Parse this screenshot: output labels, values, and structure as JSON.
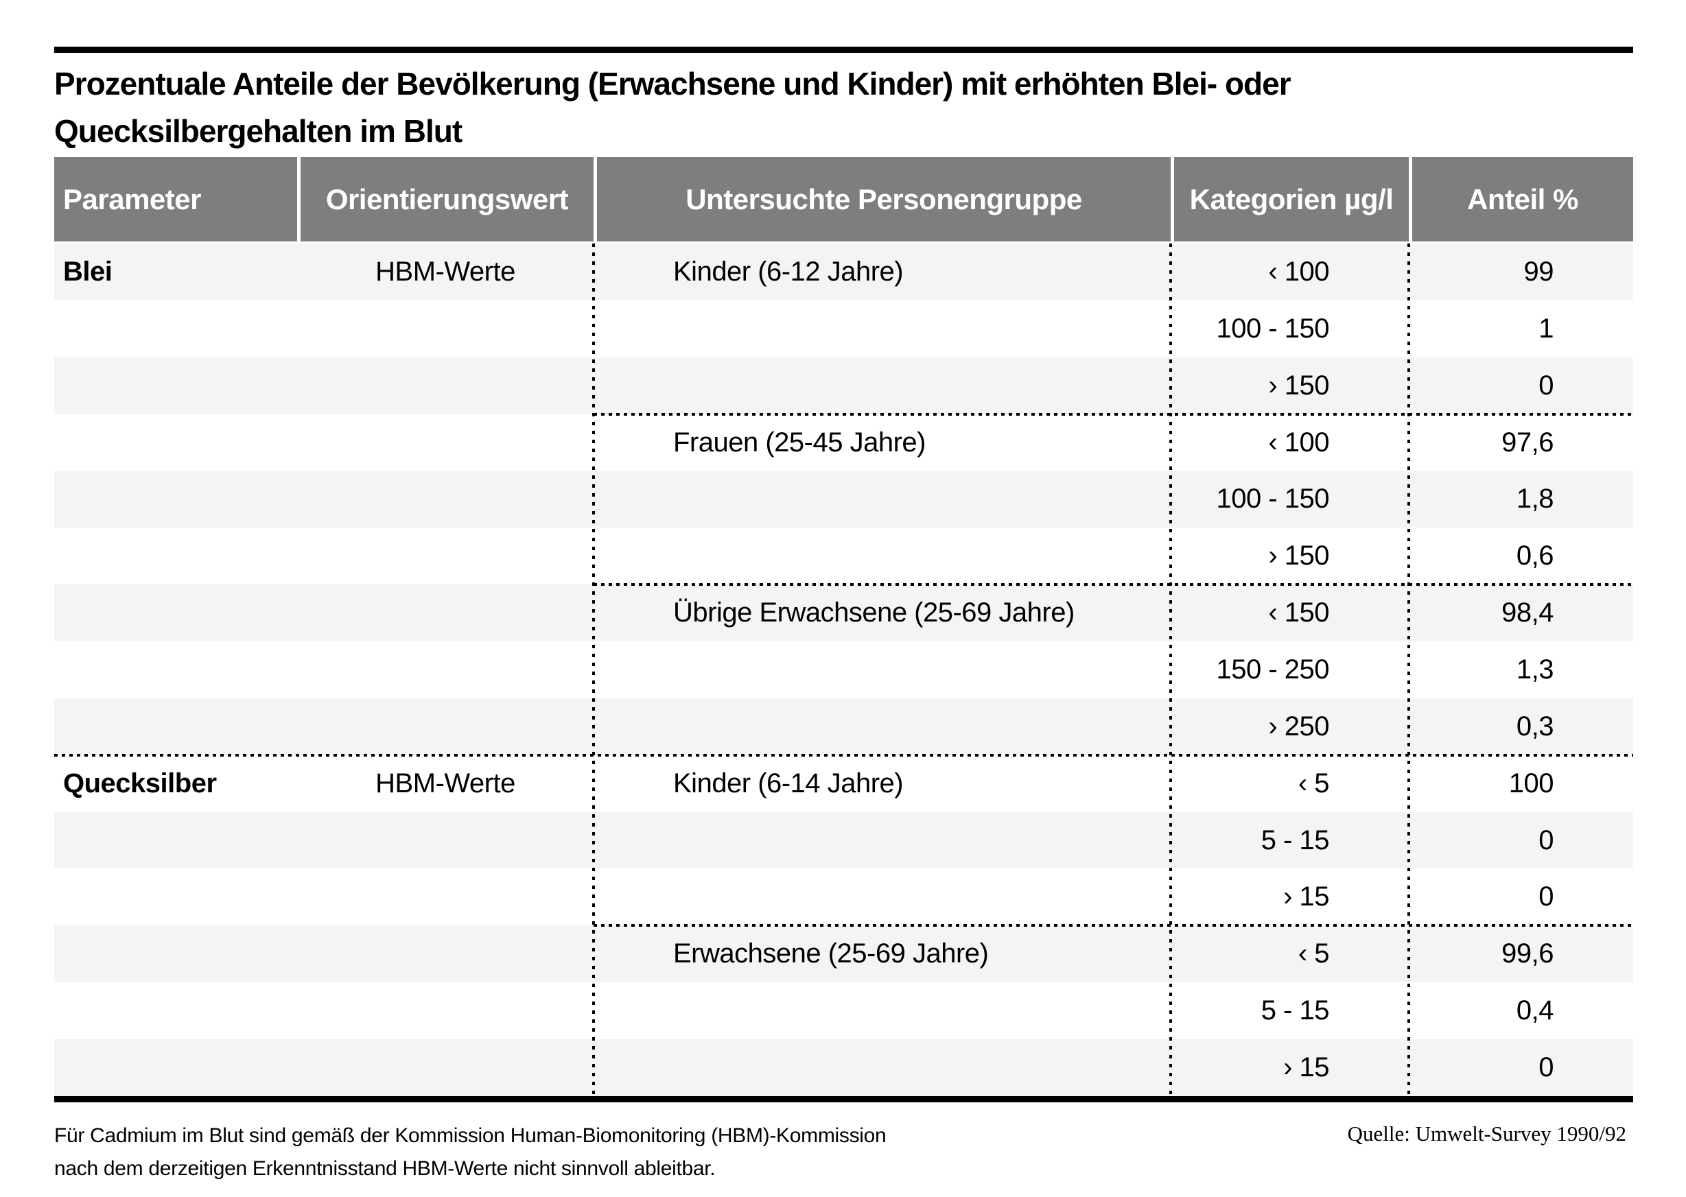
{
  "title": {
    "line1": "Prozentuale Anteile der Bevölkerung (Erwachsene und Kinder) mit erhöhten Blei- oder",
    "line2": "Quecksilbergehalten im Blut"
  },
  "chart_data": {
    "type": "table",
    "columns": [
      "Parameter",
      "Orientierungswert",
      "Untersuchte Personengruppe",
      "Kategorien µg/l",
      "Anteil %"
    ],
    "rows": [
      [
        "Blei",
        "HBM-Werte",
        "Kinder (6-12 Jahre)",
        "‹ 100",
        "99"
      ],
      [
        "",
        "",
        "",
        "100 - 150",
        "1"
      ],
      [
        "",
        "",
        "",
        "› 150",
        "0"
      ],
      [
        "",
        "",
        "Frauen (25-45 Jahre)",
        "‹ 100",
        "97,6"
      ],
      [
        "",
        "",
        "",
        "100 - 150",
        "1,8"
      ],
      [
        "",
        "",
        "",
        "› 150",
        "0,6"
      ],
      [
        "",
        "",
        "Übrige Erwachsene (25-69 Jahre)",
        "‹ 150",
        "98,4"
      ],
      [
        "",
        "",
        "",
        "150 - 250",
        "1,3"
      ],
      [
        "",
        "",
        "",
        "› 250",
        "0,3"
      ],
      [
        "Quecksilber",
        "HBM-Werte",
        "Kinder (6-14 Jahre)",
        "‹ 5",
        "100"
      ],
      [
        "",
        "",
        "",
        "5 - 15",
        "0"
      ],
      [
        "",
        "",
        "",
        "› 15",
        "0"
      ],
      [
        "",
        "",
        "Erwachsene (25-69 Jahre)",
        "‹ 5",
        "99,6"
      ],
      [
        "",
        "",
        "",
        "5 - 15",
        "0,4"
      ],
      [
        "",
        "",
        "",
        "› 15",
        "0"
      ]
    ]
  },
  "footer": {
    "note_line1": "Für Cadmium im Blut sind gemäß der Kommission Human-Biomonitoring (HBM)-Kommission",
    "note_line2": "nach dem derzeitigen Erkenntnisstand HBM-Werte nicht sinnvoll ableitbar.",
    "source": "Quelle: Umwelt-Survey 1990/92"
  },
  "colors": {
    "header_bg": "#7e7e7e",
    "header_text": "#ffffff",
    "stripe_bg": "#f4f4f4",
    "rule": "#000000"
  }
}
